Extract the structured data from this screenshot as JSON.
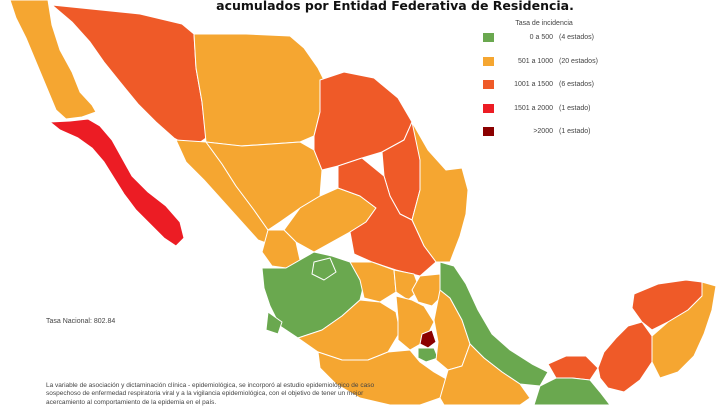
{
  "title": "acumulados por Entidad Federativa de Residencia.",
  "legend": {
    "title": "Tasa de incidencia",
    "items": [
      {
        "range": "0 a 500",
        "count": "(4 estados)",
        "color": "#6aa84f"
      },
      {
        "range": "501 a 1000",
        "count": "(20 estados)",
        "color": "#f5a631"
      },
      {
        "range": "1001 a 1500",
        "count": "(6 estados)",
        "color": "#ef5a28"
      },
      {
        "range": "1501 a 2000",
        "count": "(1 estado)",
        "color": "#ec1c24"
      },
      {
        "range": ">2000",
        "count": "(1 estado)",
        "color": "#8b0000"
      }
    ]
  },
  "national_rate": "Tasa Nacional: 802.84",
  "note": "La variable de asociación y dictaminación clínica - epidemiológica, se incorporó al estudio epidemiológico de caso sospechoso de enfermedad respiratoria viral y a la vigilancia epidemiológica, con el objetivo de tener un mejor acercamiento al comportamiento de la epidemia en el país."
}
